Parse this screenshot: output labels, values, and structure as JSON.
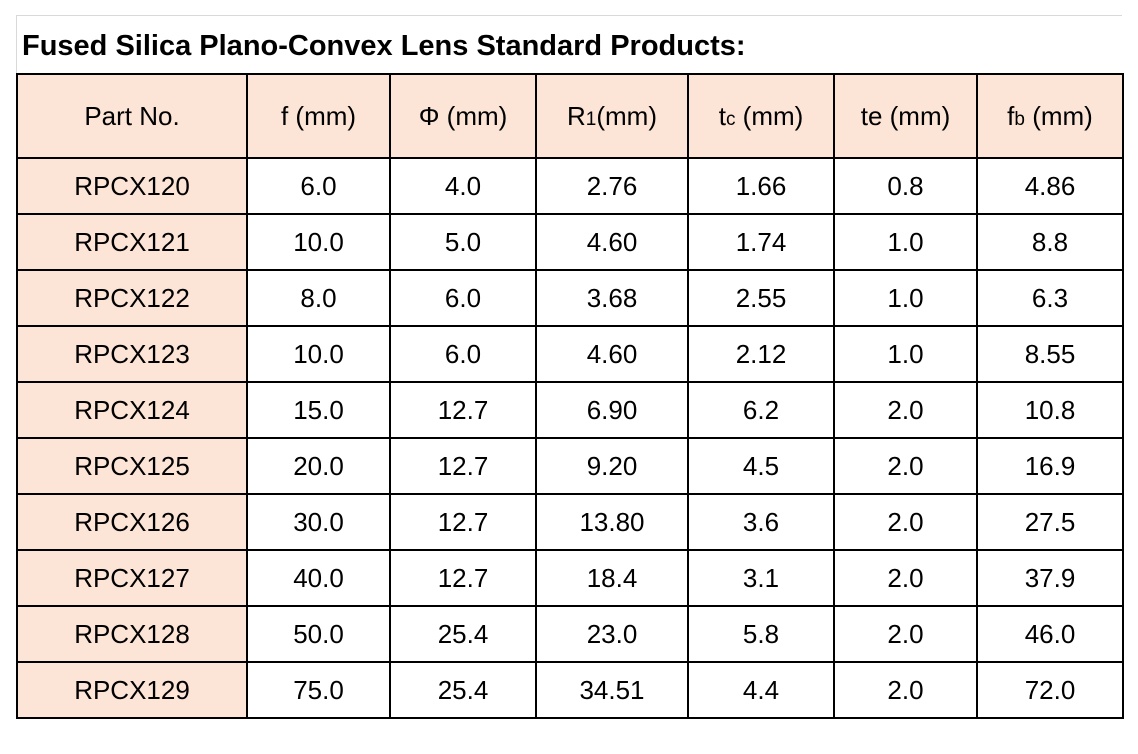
{
  "title": "Fused Silica Plano-Convex Lens Standard Products:",
  "colors": {
    "header_fill": "#fce4d6",
    "border": "#000000"
  },
  "table": {
    "headers": [
      {
        "main": "Part No.",
        "sub": "",
        "unit": ""
      },
      {
        "main": "f",
        "sub": "",
        "unit": " (mm)"
      },
      {
        "main": "Φ",
        "sub": "",
        "unit": " (mm)"
      },
      {
        "main": "R",
        "sub": "1",
        "unit": "(mm)"
      },
      {
        "main": "t",
        "sub": "c",
        "unit": " (mm)"
      },
      {
        "main": "te",
        "sub": "",
        "unit": " (mm)"
      },
      {
        "main": "f",
        "sub": "b",
        "unit": " (mm)"
      }
    ],
    "rows": [
      [
        "RPCX120",
        "6.0",
        "4.0",
        "2.76",
        "1.66",
        "0.8",
        "4.86"
      ],
      [
        "RPCX121",
        "10.0",
        "5.0",
        "4.60",
        "1.74",
        "1.0",
        "8.8"
      ],
      [
        "RPCX122",
        "8.0",
        "6.0",
        "3.68",
        "2.55",
        "1.0",
        "6.3"
      ],
      [
        "RPCX123",
        "10.0",
        "6.0",
        "4.60",
        "2.12",
        "1.0",
        "8.55"
      ],
      [
        "RPCX124",
        "15.0",
        "12.7",
        "6.90",
        "6.2",
        "2.0",
        "10.8"
      ],
      [
        "RPCX125",
        "20.0",
        "12.7",
        "9.20",
        "4.5",
        "2.0",
        "16.9"
      ],
      [
        "RPCX126",
        "30.0",
        "12.7",
        "13.80",
        "3.6",
        "2.0",
        "27.5"
      ],
      [
        "RPCX127",
        "40.0",
        "12.7",
        "18.4",
        "3.1",
        "2.0",
        "37.9"
      ],
      [
        "RPCX128",
        "50.0",
        "25.4",
        "23.0",
        "5.8",
        "2.0",
        "46.0"
      ],
      [
        "RPCX129",
        "75.0",
        "25.4",
        "34.51",
        "4.4",
        "2.0",
        "72.0"
      ]
    ]
  }
}
